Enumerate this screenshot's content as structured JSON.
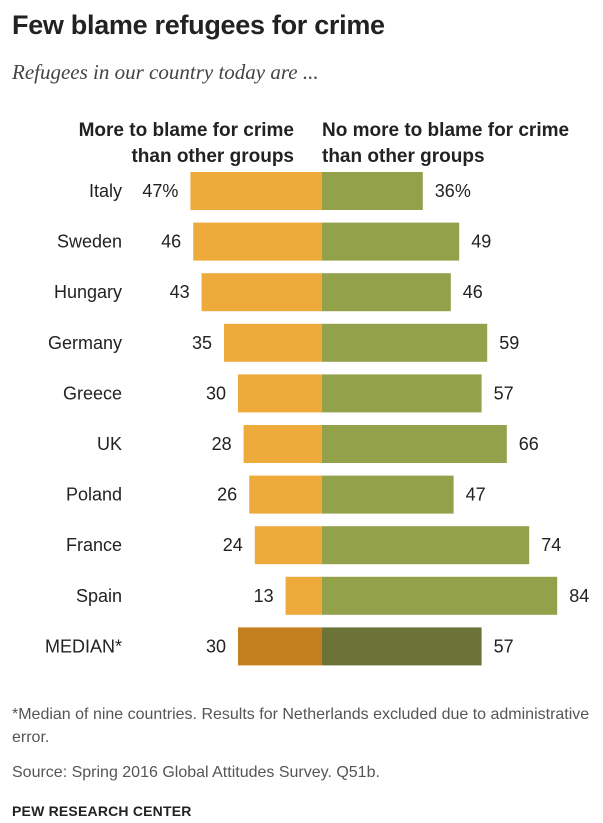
{
  "title": "Few blame refugees for crime",
  "subtitle": "Refugees in our country today are ...",
  "footnote": "*Median of nine countries. Results for Netherlands excluded due to administrative error.",
  "source": "Source: Spring 2016 Global Attitudes Survey. Q51b.",
  "brand": "PEW RESEARCH CENTER",
  "colors": {
    "blame": "#eeaa3a",
    "no_blame": "#93a24a",
    "median_blame": "#c47f1e",
    "median_no_blame": "#6b7338"
  },
  "chart_data": {
    "type": "bar",
    "orientation": "diverging-horizontal",
    "categories": [
      "Italy",
      "Sweden",
      "Hungary",
      "Germany",
      "Greece",
      "UK",
      "Poland",
      "France",
      "Spain",
      "MEDIAN*"
    ],
    "series": [
      {
        "name": "More to blame for crime than other groups",
        "values": [
          47,
          46,
          43,
          35,
          30,
          28,
          26,
          24,
          13,
          30
        ],
        "labels": [
          "47%",
          "46",
          "43",
          "35",
          "30",
          "28",
          "26",
          "24",
          "13",
          "30"
        ]
      },
      {
        "name": "No more to blame for crime than other groups",
        "values": [
          36,
          49,
          46,
          59,
          57,
          66,
          47,
          74,
          84,
          57
        ],
        "labels": [
          "36%",
          "49",
          "46",
          "59",
          "57",
          "66",
          "47",
          "74",
          "84",
          "57"
        ]
      }
    ]
  }
}
